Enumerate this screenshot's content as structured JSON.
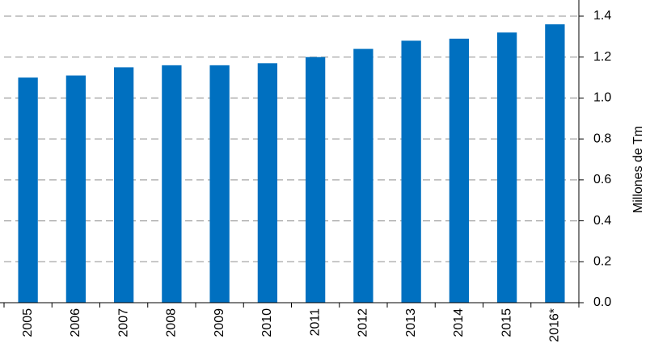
{
  "chart_data": {
    "type": "bar",
    "y_label": "Millones de Tm",
    "categories": [
      "2005",
      "2006",
      "2007",
      "2008",
      "2009",
      "2010",
      "2011",
      "2012",
      "2013",
      "2014",
      "2015",
      "2016*"
    ],
    "values": [
      1.1,
      1.11,
      1.15,
      1.16,
      1.16,
      1.17,
      1.2,
      1.24,
      1.28,
      1.29,
      1.32,
      1.36
    ],
    "color": "#0070c0",
    "ylim": [
      0,
      1.4
    ],
    "yticks": [
      {
        "value": 0,
        "label": "0.0"
      },
      0.2,
      0.4,
      0.6,
      0.8,
      {
        "value": 1,
        "label": "1.0"
      },
      1.2,
      1.4
    ],
    "grid": true
  }
}
